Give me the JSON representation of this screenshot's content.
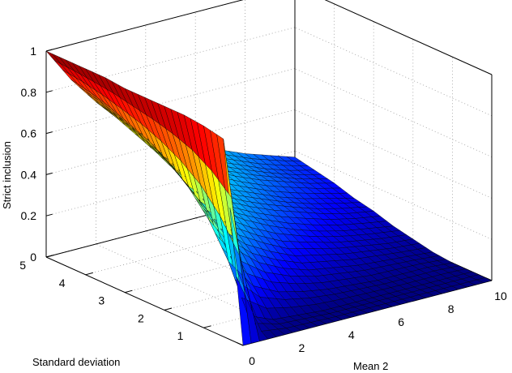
{
  "chart_data": {
    "type": "surface",
    "title": "",
    "xlabel": "Mean  2",
    "ylabel": "Standard deviation",
    "zlabel": "Strict inclusion",
    "xlim": [
      0,
      10
    ],
    "ylim": [
      0,
      5
    ],
    "zlim": [
      0,
      1
    ],
    "x_ticks": [
      "0",
      "2",
      "4",
      "6",
      "8",
      "10"
    ],
    "y_ticks": [
      "1",
      "2",
      "3",
      "4",
      "5"
    ],
    "z_ticks": [
      "0",
      "0.2",
      "0.4",
      "0.6",
      "0.8",
      "1"
    ],
    "grid": true,
    "colormap": "jet",
    "x_values": [
      0,
      1,
      2,
      3,
      4,
      5,
      6,
      7,
      8,
      9,
      10
    ],
    "y_values": [
      0,
      0.5,
      1,
      1.5,
      2,
      2.5,
      3,
      3.5,
      4,
      4.5,
      5
    ],
    "z_values": [
      [
        0.0,
        0.0,
        0.0,
        0.0,
        0.0,
        0.0,
        0.0,
        0.0,
        0.0,
        0.0,
        0.0
      ],
      [
        0.96,
        0.07,
        0.02,
        0.01,
        0.0,
        0.0,
        0.0,
        0.0,
        0.0,
        0.0,
        0.0
      ],
      [
        0.98,
        0.29,
        0.14,
        0.08,
        0.05,
        0.03,
        0.02,
        0.01,
        0.01,
        0.01,
        0.0
      ],
      [
        0.99,
        0.45,
        0.28,
        0.18,
        0.12,
        0.08,
        0.06,
        0.04,
        0.03,
        0.02,
        0.01
      ],
      [
        0.99,
        0.56,
        0.38,
        0.27,
        0.2,
        0.14,
        0.11,
        0.08,
        0.06,
        0.04,
        0.03
      ],
      [
        0.99,
        0.64,
        0.46,
        0.35,
        0.27,
        0.21,
        0.16,
        0.12,
        0.09,
        0.07,
        0.05
      ],
      [
        0.99,
        0.7,
        0.53,
        0.41,
        0.32,
        0.26,
        0.21,
        0.17,
        0.13,
        0.1,
        0.08
      ],
      [
        1.0,
        0.74,
        0.58,
        0.46,
        0.37,
        0.3,
        0.25,
        0.2,
        0.16,
        0.13,
        0.1
      ],
      [
        1.0,
        0.78,
        0.62,
        0.51,
        0.42,
        0.35,
        0.29,
        0.24,
        0.2,
        0.16,
        0.13
      ],
      [
        1.0,
        0.81,
        0.66,
        0.55,
        0.46,
        0.38,
        0.32,
        0.27,
        0.22,
        0.18,
        0.15
      ],
      [
        1.0,
        0.83,
        0.69,
        0.58,
        0.49,
        0.42,
        0.35,
        0.3,
        0.25,
        0.21,
        0.17
      ]
    ]
  }
}
